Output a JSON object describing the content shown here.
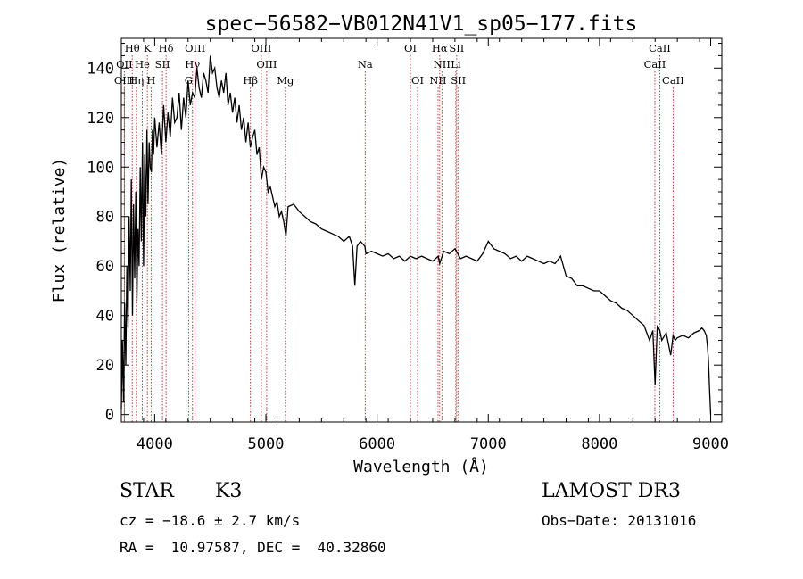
{
  "chart_data": {
    "type": "line",
    "title": "spec−56582−VB012N41V1_sp05−177.fits",
    "xlabel": "Wavelength (Å)",
    "ylabel": "Flux (relative)",
    "xlim": [
      3700,
      9100
    ],
    "ylim": [
      -3,
      152
    ],
    "xticks": [
      4000,
      5000,
      6000,
      7000,
      8000,
      9000
    ],
    "yticks": [
      0,
      20,
      40,
      60,
      80,
      100,
      120,
      140
    ],
    "line_color": "#000000",
    "marker_color": "#b22222",
    "series": [
      {
        "name": "spectrum",
        "x": [
          3700,
          3710,
          3720,
          3730,
          3740,
          3750,
          3760,
          3770,
          3780,
          3790,
          3800,
          3810,
          3820,
          3830,
          3840,
          3850,
          3860,
          3870,
          3880,
          3890,
          3900,
          3910,
          3920,
          3930,
          3940,
          3950,
          3960,
          3970,
          3980,
          3990,
          4000,
          4020,
          4040,
          4060,
          4080,
          4100,
          4120,
          4140,
          4160,
          4180,
          4200,
          4220,
          4240,
          4260,
          4280,
          4300,
          4320,
          4340,
          4360,
          4380,
          4400,
          4420,
          4440,
          4460,
          4480,
          4500,
          4520,
          4540,
          4560,
          4580,
          4600,
          4620,
          4640,
          4660,
          4680,
          4700,
          4720,
          4740,
          4760,
          4780,
          4800,
          4820,
          4840,
          4860,
          4880,
          4900,
          4920,
          4940,
          4960,
          4980,
          5000,
          5020,
          5040,
          5060,
          5080,
          5100,
          5120,
          5140,
          5160,
          5180,
          5200,
          5250,
          5300,
          5350,
          5400,
          5450,
          5500,
          5550,
          5600,
          5650,
          5700,
          5750,
          5780,
          5800,
          5820,
          5850,
          5890,
          5900,
          5950,
          6000,
          6050,
          6100,
          6150,
          6200,
          6250,
          6300,
          6350,
          6400,
          6450,
          6500,
          6550,
          6563,
          6600,
          6650,
          6700,
          6750,
          6800,
          6850,
          6900,
          6950,
          7000,
          7050,
          7100,
          7150,
          7200,
          7250,
          7300,
          7350,
          7400,
          7450,
          7500,
          7550,
          7600,
          7650,
          7700,
          7750,
          7800,
          7850,
          7900,
          7950,
          8000,
          8050,
          8100,
          8150,
          8200,
          8250,
          8300,
          8350,
          8400,
          8450,
          8480,
          8500,
          8520,
          8542,
          8560,
          8600,
          8640,
          8662,
          8680,
          8700,
          8750,
          8800,
          8850,
          8900,
          8920,
          8940,
          8960,
          8970,
          8980,
          8990,
          9000
        ],
        "y": [
          2,
          30,
          5,
          45,
          20,
          60,
          35,
          80,
          50,
          95,
          40,
          85,
          55,
          90,
          45,
          75,
          60,
          100,
          70,
          110,
          60,
          105,
          80,
          115,
          85,
          110,
          100,
          98,
          115,
          105,
          120,
          108,
          118,
          105,
          125,
          110,
          122,
          112,
          128,
          118,
          120,
          130,
          115,
          128,
          120,
          135,
          125,
          130,
          128,
          140,
          132,
          128,
          138,
          135,
          130,
          145,
          138,
          140,
          132,
          128,
          135,
          130,
          138,
          125,
          130,
          122,
          128,
          118,
          125,
          115,
          120,
          110,
          118,
          108,
          112,
          115,
          105,
          108,
          95,
          100,
          98,
          90,
          92,
          88,
          84,
          86,
          80,
          82,
          78,
          72,
          84,
          85,
          82,
          80,
          78,
          77,
          75,
          74,
          73,
          72,
          70,
          72,
          68,
          52,
          68,
          70,
          68,
          65,
          66,
          65,
          64,
          65,
          63,
          64,
          62,
          64,
          63,
          64,
          63,
          62,
          64,
          61,
          66,
          65,
          67,
          63,
          64,
          63,
          62,
          65,
          70,
          67,
          66,
          65,
          63,
          64,
          62,
          64,
          63,
          62,
          61,
          62,
          61,
          64,
          56,
          55,
          52,
          52,
          51,
          50,
          50,
          48,
          46,
          45,
          43,
          42,
          40,
          38,
          36,
          30,
          34,
          12,
          36,
          34,
          30,
          33,
          24,
          32,
          30,
          31,
          32,
          31,
          33,
          34,
          35,
          34,
          32,
          28,
          22,
          10,
          0
        ]
      }
    ],
    "emission_lines": [
      {
        "label": "Hθ",
        "wavelength": 3798,
        "row": 0
      },
      {
        "label": "OII",
        "wavelength": 3727,
        "row": 1
      },
      {
        "label": "OIII",
        "wavelength": 3727,
        "row": 2
      },
      {
        "label": "Hη",
        "wavelength": 3835,
        "row": 2
      },
      {
        "label": "He",
        "wavelength": 3889,
        "row": 1
      },
      {
        "label": "K",
        "wavelength": 3934,
        "row": 0
      },
      {
        "label": "SII",
        "wavelength": 4070,
        "row": 1
      },
      {
        "label": "H",
        "wavelength": 3968,
        "row": 2
      },
      {
        "label": "Hδ",
        "wavelength": 4102,
        "row": 0
      },
      {
        "label": "OIII",
        "wavelength": 4363,
        "row": 0
      },
      {
        "label": "Hγ",
        "wavelength": 4340,
        "row": 1
      },
      {
        "label": "G",
        "wavelength": 4305,
        "row": 2
      },
      {
        "label": "OIII",
        "wavelength": 4959,
        "row": 0
      },
      {
        "label": "OIII",
        "wavelength": 5007,
        "row": 1
      },
      {
        "label": "Hβ",
        "wavelength": 4861,
        "row": 3
      },
      {
        "label": "Mg",
        "wavelength": 5175,
        "row": 3
      },
      {
        "label": "Na",
        "wavelength": 5893,
        "row": 1
      },
      {
        "label": "OI",
        "wavelength": 6300,
        "row": 0
      },
      {
        "label": "OI",
        "wavelength": 6364,
        "row": 2
      },
      {
        "label": "Hα",
        "wavelength": 6563,
        "row": 0
      },
      {
        "label": "SII",
        "wavelength": 6716,
        "row": 0
      },
      {
        "label": "NII",
        "wavelength": 6583,
        "row": 1
      },
      {
        "label": "Li",
        "wavelength": 6708,
        "row": 1
      },
      {
        "label": "NII",
        "wavelength": 6548,
        "row": 2
      },
      {
        "label": "SII",
        "wavelength": 6731,
        "row": 2
      },
      {
        "label": "CaII",
        "wavelength": 8542,
        "row": 0
      },
      {
        "label": "CaII",
        "wavelength": 8498,
        "row": 1
      },
      {
        "label": "CaII",
        "wavelength": 8662,
        "row": 2
      }
    ]
  },
  "footer": {
    "object_class": "STAR",
    "subclass": "K3",
    "survey": "LAMOST DR3",
    "cz": "cz = −18.6 ± 2.7 km/s",
    "obs_date": "Obs−Date: 20131016",
    "coords": "RA =  10.97587, DEC =  40.32860"
  }
}
